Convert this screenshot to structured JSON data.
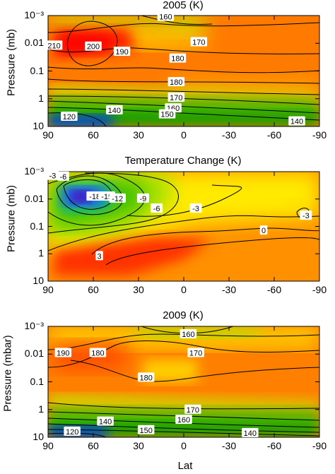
{
  "chart_data": [
    {
      "type": "heatmap",
      "title": "2005 (K)",
      "xlabel": "",
      "ylabel": "Pressure (mb)",
      "x_ticks": [
        "90",
        "60",
        "30",
        "0",
        "-30",
        "-60",
        "-90"
      ],
      "y_ticks": [
        "10⁻³",
        "0.01",
        "0.1",
        "1",
        "10"
      ],
      "xlim": [
        90,
        -90
      ],
      "ylim": [
        10,
        0.001
      ],
      "y_scale": "log",
      "colormap": [
        "#0000c0",
        "#00c000",
        "#ffff00",
        "#ff8c00",
        "#ff0000"
      ],
      "contour_labels": [
        {
          "value": "160",
          "lat": 12,
          "p": 0.0011
        },
        {
          "value": "210",
          "lat": 86,
          "p": 0.012
        },
        {
          "value": "200",
          "lat": 60,
          "p": 0.013
        },
        {
          "value": "190",
          "lat": 41,
          "p": 0.02
        },
        {
          "value": "170",
          "lat": -10,
          "p": 0.009
        },
        {
          "value": "180",
          "lat": 4,
          "p": 0.035
        },
        {
          "value": "180",
          "lat": 5,
          "p": 0.25
        },
        {
          "value": "170",
          "lat": 5,
          "p": 0.9
        },
        {
          "value": "160",
          "lat": 7,
          "p": 2.2
        },
        {
          "value": "150",
          "lat": 11,
          "p": 3.6
        },
        {
          "value": "140",
          "lat": 46,
          "p": 2.6
        },
        {
          "value": "120",
          "lat": 76,
          "p": 4.4
        },
        {
          "value": "140",
          "lat": -75,
          "p": 6.5
        }
      ]
    },
    {
      "type": "heatmap",
      "title": "Temperature Change (K)",
      "xlabel": "",
      "ylabel": "Pressure (mb)",
      "x_ticks": [
        "90",
        "60",
        "30",
        "0",
        "-30",
        "-60",
        "-90"
      ],
      "y_ticks": [
        "10⁻³",
        "0.01",
        "0.1",
        "1",
        "10"
      ],
      "xlim": [
        90,
        -90
      ],
      "ylim": [
        10,
        0.001
      ],
      "y_scale": "log",
      "colormap": [
        "#5000a0",
        "#0000e0",
        "#00c000",
        "#ffff00",
        "#ff8c00",
        "#ff0000"
      ],
      "contour_labels": [
        {
          "value": "-3",
          "lat": 87,
          "p": 0.0014
        },
        {
          "value": "-6",
          "lat": 80,
          "p": 0.0015
        },
        {
          "value": "-18",
          "lat": 59,
          "p": 0.008
        },
        {
          "value": "-15",
          "lat": 51,
          "p": 0.008
        },
        {
          "value": "-12",
          "lat": 44,
          "p": 0.0095
        },
        {
          "value": "-9",
          "lat": 27,
          "p": 0.0095
        },
        {
          "value": "-6",
          "lat": 18,
          "p": 0.022
        },
        {
          "value": "-3",
          "lat": -8,
          "p": 0.022
        },
        {
          "value": "0",
          "lat": -53,
          "p": 0.14
        },
        {
          "value": "-3",
          "lat": -81,
          "p": 0.04
        },
        {
          "value": "3",
          "lat": 56,
          "p": 1.2
        }
      ]
    },
    {
      "type": "heatmap",
      "title": "2009 (K)",
      "xlabel": "Lat",
      "ylabel": "Pressure (mbar)",
      "x_ticks": [
        "90",
        "60",
        "30",
        "0",
        "-30",
        "-60",
        "-90"
      ],
      "y_ticks": [
        "10⁻³",
        "0.01",
        "0.1",
        "1",
        "10"
      ],
      "xlim": [
        90,
        -90
      ],
      "ylim": [
        10,
        0.001
      ],
      "y_scale": "log",
      "colormap": [
        "#0000c0",
        "#00c000",
        "#ffff00",
        "#ff8c00",
        "#ff0000"
      ],
      "contour_labels": [
        {
          "value": "160",
          "lat": -3,
          "p": 0.0019
        },
        {
          "value": "190",
          "lat": 80,
          "p": 0.009
        },
        {
          "value": "180",
          "lat": 57,
          "p": 0.009
        },
        {
          "value": "170",
          "lat": -8,
          "p": 0.009
        },
        {
          "value": "180",
          "lat": 25,
          "p": 0.07
        },
        {
          "value": "170",
          "lat": -6,
          "p": 1.0
        },
        {
          "value": "160",
          "lat": 0,
          "p": 2.3
        },
        {
          "value": "150",
          "lat": 25,
          "p": 5.5
        },
        {
          "value": "140",
          "lat": 52,
          "p": 2.7
        },
        {
          "value": "120",
          "lat": 74,
          "p": 6.2
        },
        {
          "value": "140",
          "lat": -44,
          "p": 7.0
        }
      ]
    }
  ]
}
